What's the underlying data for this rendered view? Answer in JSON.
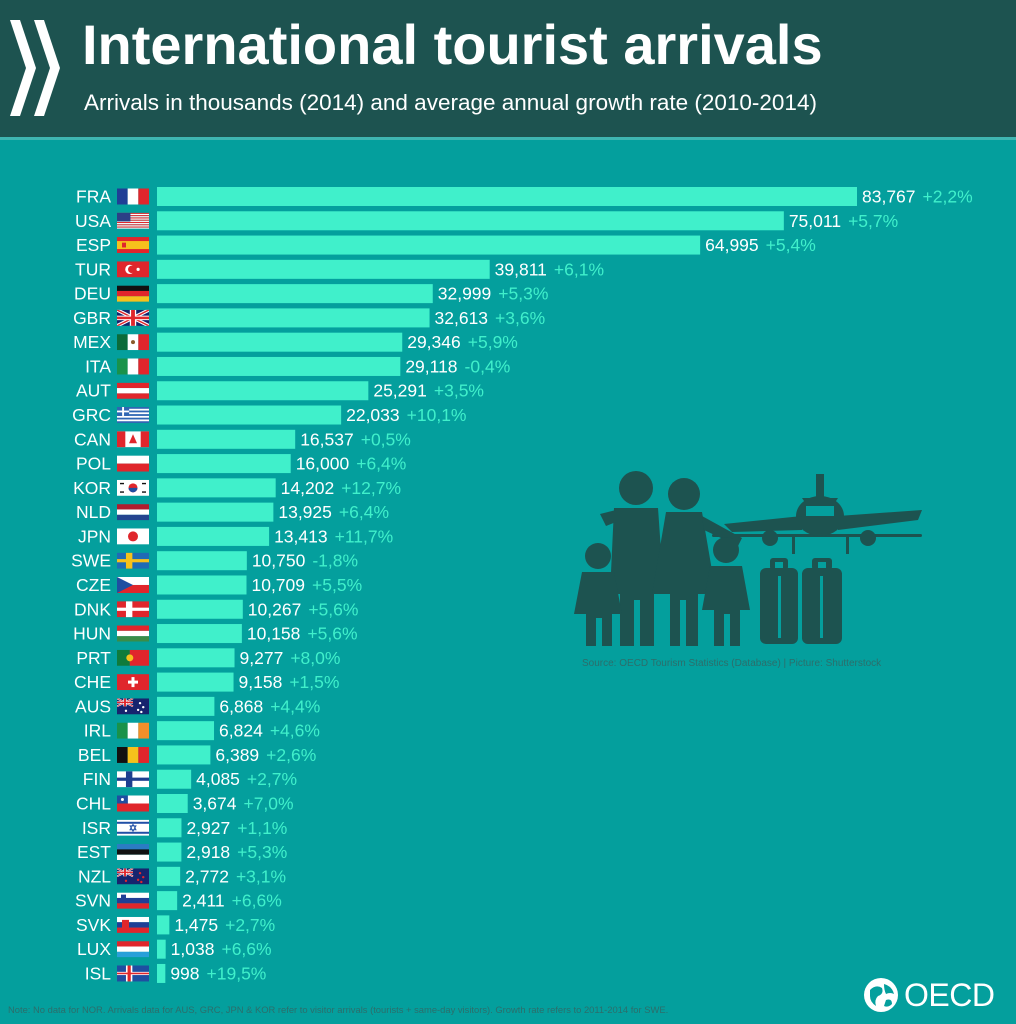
{
  "header": {
    "title": "International tourist arrivals",
    "subtitle": "Arrivals in thousands (2014) and average annual growth rate (2010-2014)"
  },
  "source": "Source: OECD Tourism Statistics (Database) | Picture: Shutterstock",
  "note": "Note: No data for NOR. Arrivals data for AUS, GRC, JPN & KOR refer to visitor arrivals (tourists + same-day visitors). Growth rate refers to 2011-2014 for SWE.",
  "brand": "OECD",
  "colors": {
    "background": "#049f9d",
    "header": "#1d5350",
    "bar": "#40f0cb",
    "growth_text": "#40f0cb",
    "value_text": "#ffffff"
  },
  "illustration": [
    "family-icon",
    "airplane-icon",
    "suitcase-icon"
  ],
  "chart_data": {
    "type": "bar",
    "orientation": "horizontal",
    "categories": [
      "FRA",
      "USA",
      "ESP",
      "TUR",
      "DEU",
      "GBR",
      "MEX",
      "ITA",
      "AUT",
      "GRC",
      "CAN",
      "POL",
      "KOR",
      "NLD",
      "JPN",
      "SWE",
      "CZE",
      "DNK",
      "HUN",
      "PRT",
      "CHE",
      "AUS",
      "IRL",
      "BEL",
      "FIN",
      "CHL",
      "ISR",
      "EST",
      "NZL",
      "SVN",
      "SVK",
      "LUX",
      "ISL"
    ],
    "values": [
      83767,
      75011,
      64995,
      39811,
      32999,
      32613,
      29346,
      29118,
      25291,
      22033,
      16537,
      16000,
      14202,
      13925,
      13413,
      10750,
      10709,
      10267,
      10158,
      9277,
      9158,
      6868,
      6824,
      6389,
      4085,
      3674,
      2927,
      2918,
      2772,
      2411,
      1475,
      1038,
      998
    ],
    "value_labels": [
      "83,767",
      "75,011",
      "64,995",
      "39,811",
      "32,999",
      "32,613",
      "29,346",
      "29,118",
      "25,291",
      "22,033",
      "16,537",
      "16,000",
      "14,202",
      "13,925",
      "13,413",
      "10,750",
      "10,709",
      "10,267",
      "10,158",
      "9,277",
      "9,158",
      "6,868",
      "6,824",
      "6,389",
      "4,085",
      "3,674",
      "2,927",
      "2,918",
      "2,772",
      "2,411",
      "1,475",
      "1,038",
      "998"
    ],
    "growth_labels": [
      "+2,2%",
      "+5,7%",
      "+5,4%",
      "+6,1%",
      "+5,3%",
      "+3,6%",
      "+5,9%",
      "-0,4%",
      "+3,5%",
      "+10,1%",
      "+0,5%",
      "+6,4%",
      "+12,7%",
      "+6,4%",
      "+11,7%",
      "-1,8%",
      "+5,5%",
      "+5,6%",
      "+5,6%",
      "+8,0%",
      "+1,5%",
      "+4,4%",
      "+4,6%",
      "+2,6%",
      "+2,7%",
      "+7,0%",
      "+1,1%",
      "+5,3%",
      "+3,1%",
      "+6,6%",
      "+2,7%",
      "+6,6%",
      "+19,5%"
    ],
    "flag_icons": [
      "flag-fra-icon",
      "flag-usa-icon",
      "flag-esp-icon",
      "flag-tur-icon",
      "flag-deu-icon",
      "flag-gbr-icon",
      "flag-mex-icon",
      "flag-ita-icon",
      "flag-aut-icon",
      "flag-grc-icon",
      "flag-can-icon",
      "flag-pol-icon",
      "flag-kor-icon",
      "flag-nld-icon",
      "flag-jpn-icon",
      "flag-swe-icon",
      "flag-cze-icon",
      "flag-dnk-icon",
      "flag-hun-icon",
      "flag-prt-icon",
      "flag-che-icon",
      "flag-aus-icon",
      "flag-irl-icon",
      "flag-bel-icon",
      "flag-fin-icon",
      "flag-chl-icon",
      "flag-isr-icon",
      "flag-est-icon",
      "flag-nzl-icon",
      "flag-svn-icon",
      "flag-svk-icon",
      "flag-lux-icon",
      "flag-isl-icon"
    ],
    "xlim": [
      0,
      83767
    ],
    "grid": false,
    "legend": "none"
  }
}
